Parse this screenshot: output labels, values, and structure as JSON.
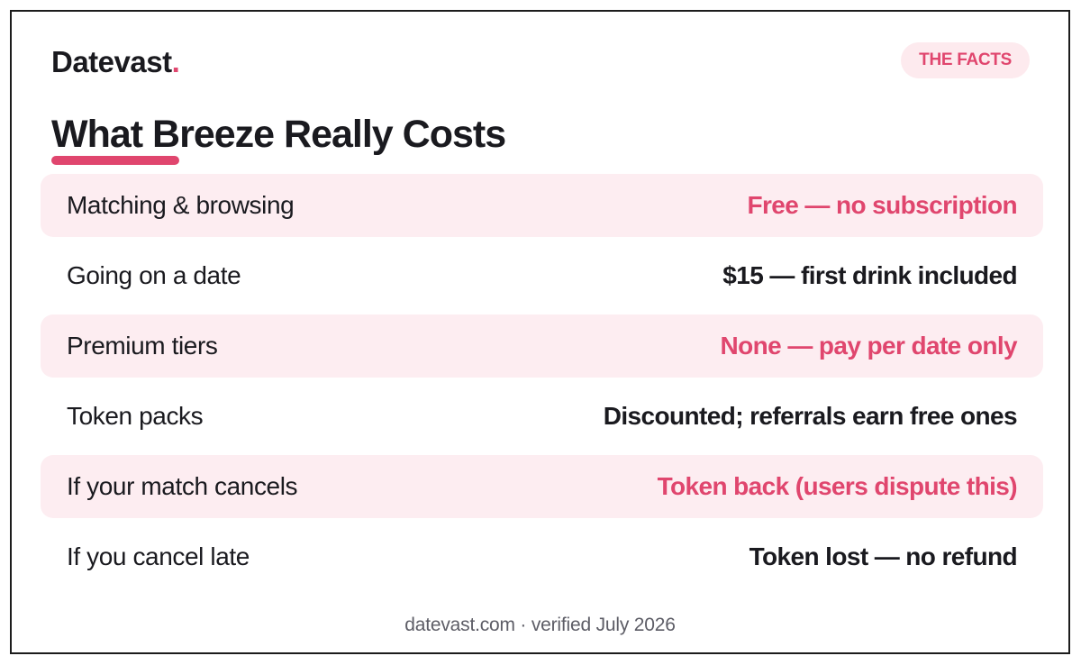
{
  "brand": {
    "name": "Datevast",
    "dot": "."
  },
  "badge": "THE FACTS",
  "title": "What Breeze Really Costs",
  "rows": [
    {
      "label": "Matching & browsing",
      "value": "Free — no subscription",
      "highlight": true
    },
    {
      "label": "Going on a date",
      "value": "$15 — first drink included",
      "highlight": false
    },
    {
      "label": "Premium tiers",
      "value": "None — pay per date only",
      "highlight": true
    },
    {
      "label": "Token packs",
      "value": "Discounted; referrals earn free ones",
      "highlight": false
    },
    {
      "label": "If your match cancels",
      "value": "Token back (users dispute this)",
      "highlight": true
    },
    {
      "label": "If you cancel late",
      "value": "Token lost — no refund",
      "highlight": false
    }
  ],
  "footer": "datevast.com · verified July 2026",
  "colors": {
    "accent": "#e0466e",
    "row_highlight": "#fdedf1",
    "badge_bg": "#fdeaee",
    "text": "#1a1a1f",
    "muted": "#5d5d66"
  }
}
